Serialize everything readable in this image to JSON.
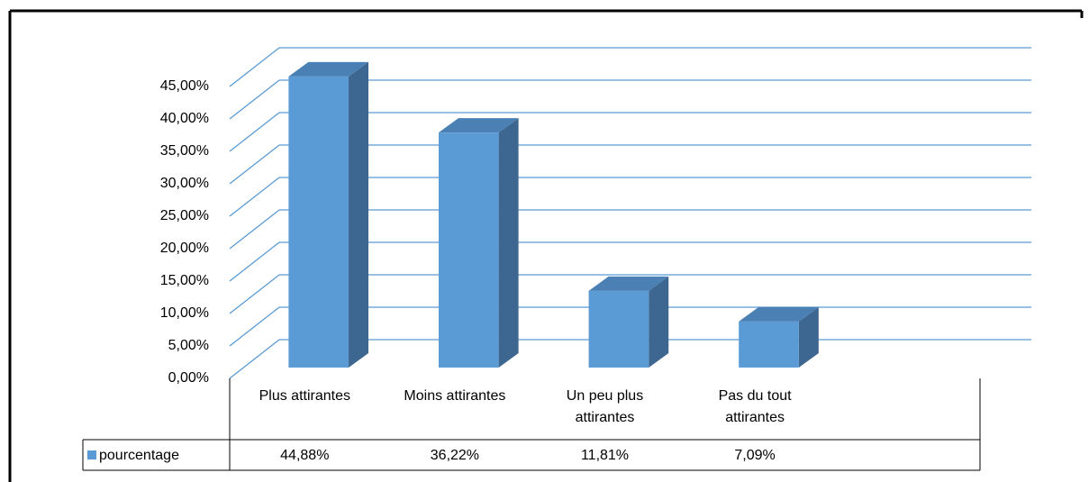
{
  "chart_data": {
    "type": "bar3d",
    "categories": [
      "Plus attirantes",
      "Moins attirantes",
      "Un peu plus attirantes",
      "Pas du tout attirantes",
      null
    ],
    "series": [
      {
        "name": "pourcentage",
        "color": "#5b9bd5",
        "values": [
          44.88,
          36.22,
          11.81,
          7.09,
          null
        ],
        "value_labels": [
          "44,88%",
          "36,22%",
          "11,81%",
          "7,09%",
          null
        ]
      }
    ],
    "ylim": [
      0,
      45
    ],
    "yticks": [
      {
        "value": 0,
        "label": "0,00%"
      },
      {
        "value": 5,
        "label": "5,00%"
      },
      {
        "value": 10,
        "label": "10,00%"
      },
      {
        "value": 15,
        "label": "15,00%"
      },
      {
        "value": 20,
        "label": "20,00%"
      },
      {
        "value": 25,
        "label": "25,00%"
      },
      {
        "value": 30,
        "label": "30,00%"
      },
      {
        "value": 35,
        "label": "35,00%"
      },
      {
        "value": 40,
        "label": "40,00%"
      },
      {
        "value": 45,
        "label": "45,00%"
      }
    ],
    "grid": true,
    "legend": "data-table"
  }
}
